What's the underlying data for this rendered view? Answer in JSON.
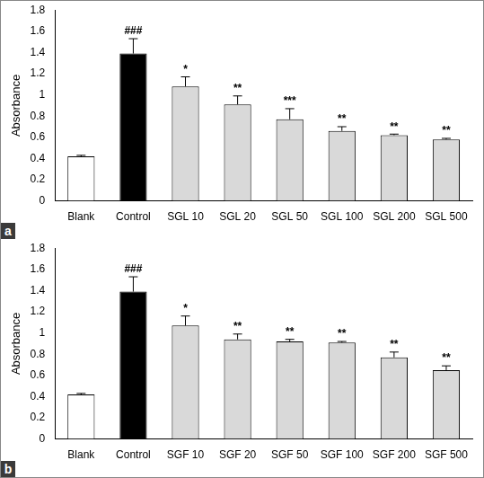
{
  "chart_data": [
    {
      "type": "bar",
      "panel": "a",
      "categories": [
        "Blank",
        "Control",
        "SGL 10",
        "SGL 20",
        "SGL 50",
        "SGL 100",
        "SGL 200",
        "SGL 500"
      ],
      "values": [
        0.42,
        1.39,
        1.08,
        0.91,
        0.77,
        0.66,
        0.62,
        0.58
      ],
      "errors": [
        0.01,
        0.14,
        0.09,
        0.08,
        0.1,
        0.04,
        0.01,
        0.01
      ],
      "annotations": [
        null,
        "###",
        "*",
        "**",
        "***",
        "**",
        "**",
        "**"
      ],
      "colors": [
        "#ffffff",
        "#000000",
        "#d9d9d9",
        "#d9d9d9",
        "#d9d9d9",
        "#d9d9d9",
        "#d9d9d9",
        "#d9d9d9"
      ],
      "y_label": "Absorbance",
      "ylim": [
        0,
        1.8
      ],
      "yticks": [
        0,
        0.2,
        0.4,
        0.6,
        0.8,
        1,
        1.2,
        1.4,
        1.6,
        1.8
      ],
      "grid": false
    },
    {
      "type": "bar",
      "panel": "b",
      "categories": [
        "Blank",
        "Control",
        "SGF 10",
        "SGF 20",
        "SGF 50",
        "SGF 100",
        "SGF 200",
        "SGF 500"
      ],
      "values": [
        0.42,
        1.39,
        1.07,
        0.94,
        0.92,
        0.91,
        0.77,
        0.65
      ],
      "errors": [
        0.01,
        0.14,
        0.09,
        0.05,
        0.02,
        0.01,
        0.05,
        0.04
      ],
      "annotations": [
        null,
        "###",
        "*",
        "**",
        "**",
        "**",
        "**",
        "**"
      ],
      "colors": [
        "#ffffff",
        "#000000",
        "#d9d9d9",
        "#d9d9d9",
        "#d9d9d9",
        "#d9d9d9",
        "#d9d9d9",
        "#d9d9d9"
      ],
      "y_label": "Absorbance",
      "ylim": [
        0,
        1.8
      ],
      "yticks": [
        0,
        0.2,
        0.4,
        0.6,
        0.8,
        1,
        1.2,
        1.4,
        1.6,
        1.8
      ],
      "grid": false
    }
  ]
}
